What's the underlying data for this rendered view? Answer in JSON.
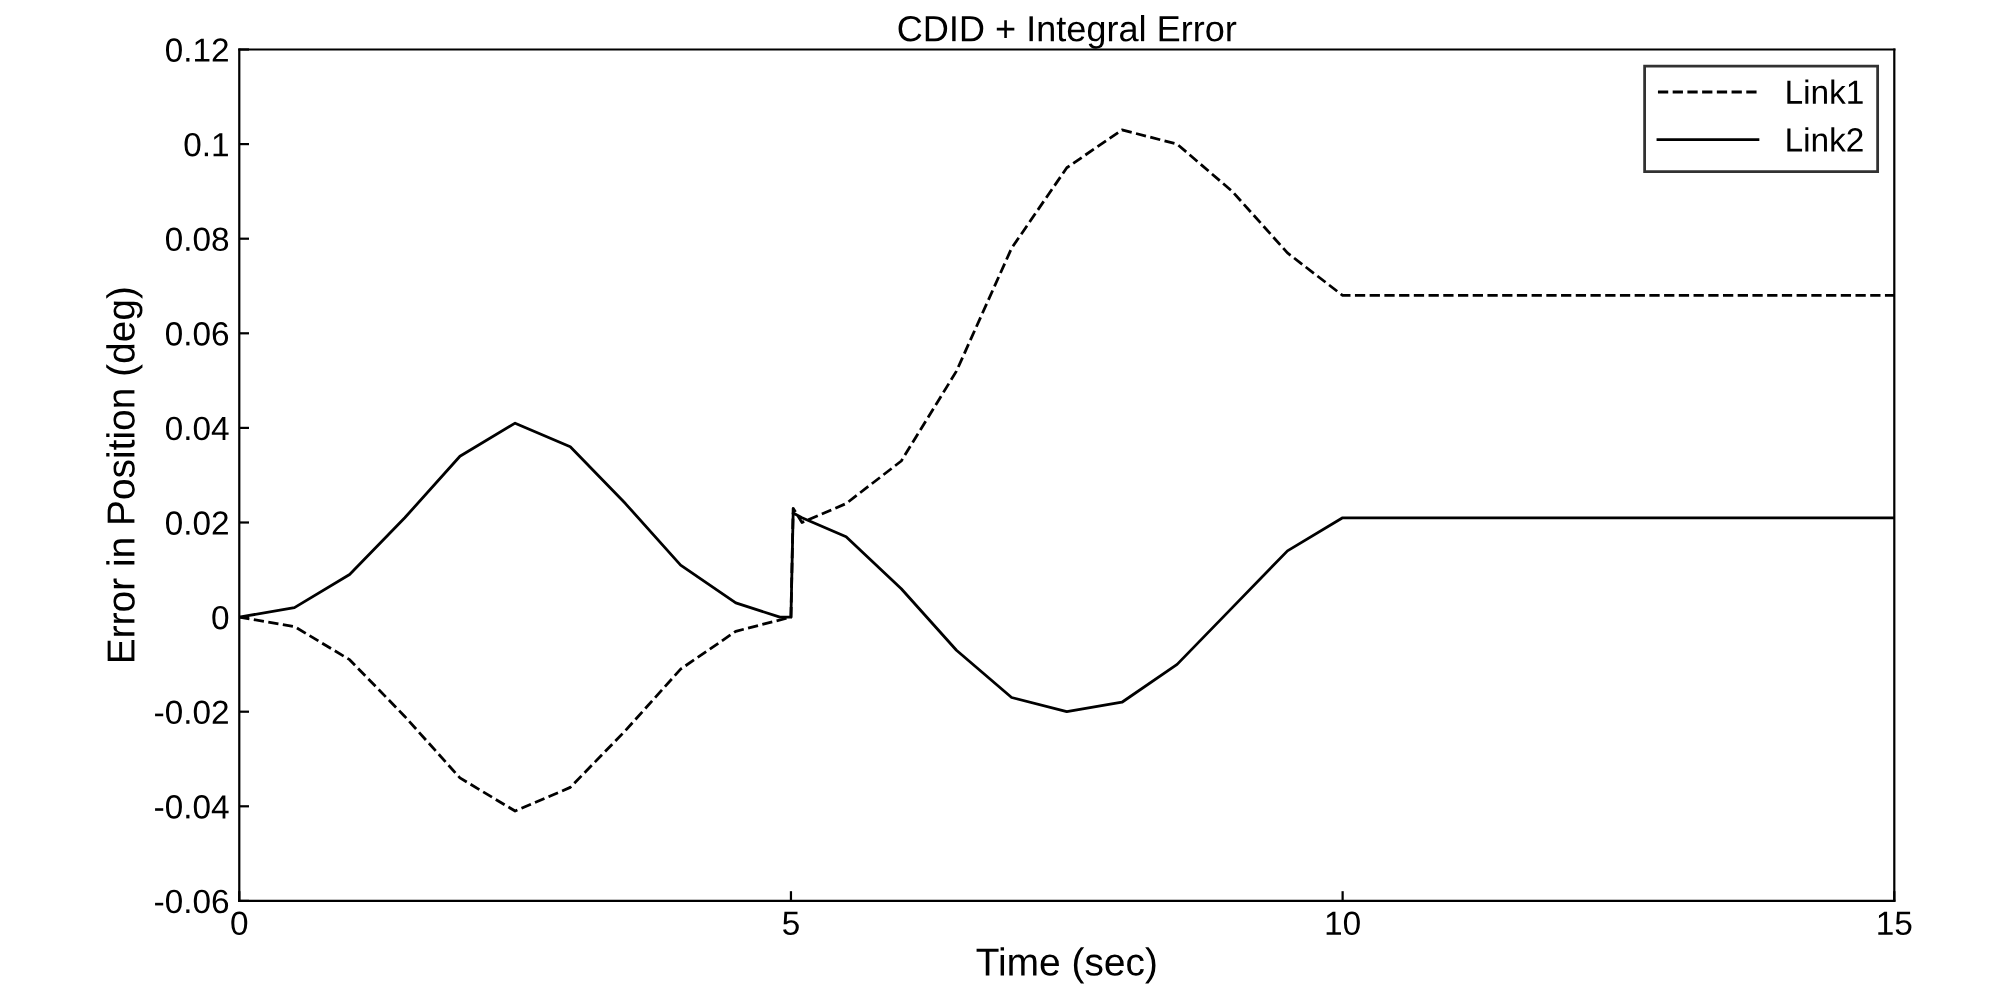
{
  "chart_data": {
    "type": "line",
    "title": "CDID + Integral Error",
    "xlabel": "Time (sec)",
    "ylabel": "Error in Position (deg)",
    "series": [
      {
        "name": "Link1",
        "color": "#000000",
        "line_style": "dashed",
        "x": [
          0,
          0.5,
          1,
          1.5,
          2,
          2.5,
          3,
          3.5,
          4,
          4.5,
          5.0,
          5.02,
          5.1,
          5.5,
          6,
          6.5,
          7,
          7.5,
          8,
          8.5,
          9,
          9.5,
          10,
          15
        ],
        "values": [
          0,
          -0.002,
          -0.009,
          -0.021,
          -0.034,
          -0.041,
          -0.036,
          -0.024,
          -0.011,
          -0.003,
          0.0,
          0.023,
          0.02,
          0.024,
          0.033,
          0.052,
          0.078,
          0.095,
          0.103,
          0.1,
          0.09,
          0.077,
          0.068,
          0.068
        ]
      },
      {
        "name": "Link2",
        "color": "#000000",
        "line_style": "solid",
        "x": [
          0,
          0.5,
          1,
          1.5,
          2,
          2.5,
          3,
          3.5,
          4,
          4.5,
          4.9,
          5.0,
          5.02,
          5.1,
          5.5,
          6,
          6.5,
          7,
          7.5,
          8,
          8.5,
          9,
          9.5,
          10,
          15
        ],
        "values": [
          0,
          0.002,
          0.009,
          0.021,
          0.034,
          0.041,
          0.036,
          0.024,
          0.011,
          0.003,
          0.0,
          0.0,
          0.022,
          0.021,
          0.017,
          0.006,
          -0.007,
          -0.017,
          -0.02,
          -0.018,
          -0.01,
          0.002,
          0.014,
          0.021,
          0.021
        ]
      }
    ],
    "xlim": [
      0,
      15
    ],
    "xticks": [
      0,
      5,
      10,
      15
    ],
    "ylim": [
      -0.06,
      0.12
    ],
    "yticks": [
      -0.06,
      -0.04,
      -0.02,
      0,
      0.02,
      0.04,
      0.06,
      0.08,
      0.1,
      0.12
    ],
    "grid": false,
    "legend": "top right",
    "marker": "none"
  }
}
